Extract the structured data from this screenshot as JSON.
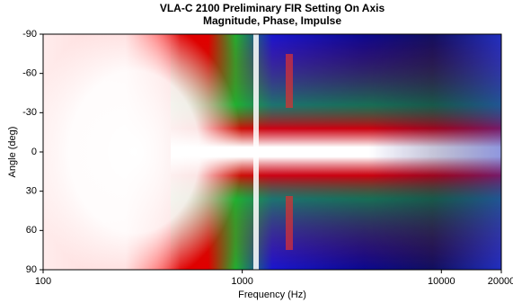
{
  "chart_data": {
    "type": "heatmap",
    "title": "VLA-C 2100 Preliminary FIR Setting On Axis",
    "subtitle": "Magnitude, Phase, Impulse",
    "xlabel": "Frequency (Hz)",
    "ylabel": "Angle (deg)",
    "xscale": "log",
    "xlim": [
      100,
      20000
    ],
    "xticks": [
      100,
      1000,
      10000,
      20000
    ],
    "ylim": [
      90,
      -90
    ],
    "yticks": [
      -90,
      -60,
      -30,
      0,
      30,
      60,
      90
    ]
  }
}
